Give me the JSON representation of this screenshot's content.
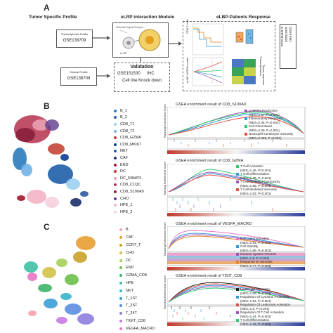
{
  "panels": {
    "a": {
      "letter": "A",
      "headers": [
        "Tumor Specific Profile",
        "eLRP interaction Module",
        "eLBP-Patients Response"
      ],
      "profile_boxes": [
        {
          "title": "Transcriptomic Profile",
          "gse": "GSE138709"
        },
        {
          "title": "Clinical Profile",
          "gse": "GSE138709"
        }
      ],
      "module_caption": "eLBP",
      "validation": {
        "title": "Validation",
        "gse": "GSE151530",
        "ihc": "IHC",
        "knockdown": "Cell line Knock down"
      },
      "response_labels": {
        "left_top": "CD8 T cells",
        "left_bottom": "eLBP LASSO model",
        "right_top": "Transcriptomics",
        "right_bottom": "Tissue response"
      },
      "gse_vertical": [
        "GSE91061",
        "GSE78220",
        "E-MTAB-6134"
      ],
      "colors": {
        "arrow": "#555555",
        "heat_blue": "#4a78c5",
        "heat_green": "#3aa35a",
        "heat_yellow": "#c8d24a"
      }
    },
    "b": {
      "letter": "B",
      "legend": [
        {
          "label": "B_1",
          "color": "#2b7bba"
        },
        {
          "label": "B_2",
          "color": "#1f5fa8"
        },
        {
          "label": "CD8_T1",
          "color": "#9ad0ef"
        },
        {
          "label": "CD8_T2",
          "color": "#71b3e6"
        },
        {
          "label": "CD8_GZMA",
          "color": "#c0392b"
        },
        {
          "label": "CD8_MKI67",
          "color": "#0b3d91"
        },
        {
          "label": "NKT",
          "color": "#2e5aa0"
        },
        {
          "label": "CAF",
          "color": "#1a2f6b"
        },
        {
          "label": "END",
          "color": "#a3182b"
        },
        {
          "label": "DC",
          "color": "#d62828"
        },
        {
          "label": "DC_RAMP3",
          "color": "#e8a0b0"
        },
        {
          "label": "CD8_C1QC",
          "color": "#b5314e"
        },
        {
          "label": "CD8_S100A9",
          "color": "#8a1f3c"
        },
        {
          "label": "CHO",
          "color": "#5e3c8f"
        },
        {
          "label": "HPE_1",
          "color": "#f2b6c6"
        },
        {
          "label": "HPE_2",
          "color": "#f6d3dc"
        }
      ],
      "gsea": [
        {
          "title": "GSEA enrichment result of  CD8_S100A9",
          "ylabel": "Running Enrichment Score",
          "legend": [
            {
              "term": "Cytokine Production",
              "stat": "(NES=1.57, P=0.001)",
              "color": "#9b59b6"
            },
            {
              "term": "Inflammatory Response",
              "stat": "(NES=2.35, P=0.002)",
              "color": "#3498db"
            },
            {
              "term": "Cell Chemotaxis",
              "stat": "(NES=2.09, P=0.001)",
              "color": "#2ecc71"
            },
            {
              "term": "Neutrophil Leukocyte Immunity",
              "stat": "(NES=2.499, P=0.001)",
              "color": "#e74c3c"
            }
          ]
        },
        {
          "title": "GSEA enrichment result of  CD8_GZMA",
          "ylabel": "Running Enrichment Score",
          "legend": [
            {
              "term": "T Cell Activation",
              "stat": "(NES=1.45, P<0.001)",
              "color": "#2ecc71"
            },
            {
              "term": "T Cell Differentiation",
              "stat": "(NES=1.29, P=0.001)",
              "color": "#3498db"
            },
            {
              "term": "T Cell Mediated Cytotoxicity",
              "stat": "(NES=1.55, P<0.001)",
              "color": "#9b59b6"
            },
            {
              "term": "T Cell Mediated Immunity",
              "stat": "(NES=1.53, P<0.001)",
              "color": "#e74c3c"
            }
          ]
        }
      ]
    },
    "c": {
      "letter": "C",
      "legend": [
        {
          "label": "B",
          "color": "#f4a5b0"
        },
        {
          "label": "CAF",
          "color": "#e8a33b"
        },
        {
          "label": "CCR7_T",
          "color": "#c9a227"
        },
        {
          "label": "CHO",
          "color": "#d4c24a"
        },
        {
          "label": "DC",
          "color": "#a6cf5a"
        },
        {
          "label": "END",
          "color": "#6cc04a"
        },
        {
          "label": "GZMA_CD8",
          "color": "#3fb36b"
        },
        {
          "label": "HPE",
          "color": "#3ec1a4"
        },
        {
          "label": "NKT",
          "color": "#36b5c9"
        },
        {
          "label": "T_1ST",
          "color": "#3aa0d9"
        },
        {
          "label": "T_2ST",
          "color": "#5b8ee0"
        },
        {
          "label": "T_24T",
          "color": "#8c7ee0"
        },
        {
          "label": "TIGIT_CD8",
          "color": "#c77be0"
        },
        {
          "label": "VEGFA_MACRO",
          "color": "#e873c4"
        }
      ],
      "gsea": [
        {
          "title": "GSEA enrichment result of  VEGFA_MACRO",
          "ylabel": "Running Enrichment Score",
          "legend": [
            {
              "term": "Cell Communication",
              "stat": "(NES=1.91, P=0.001)",
              "color": "#e873c4"
            },
            {
              "term": "Cell Stability",
              "stat": "(NES=1.85, P=0.001)",
              "color": "#3498db"
            },
            {
              "term": "Immune System Process",
              "stat": "(NES=1.8, P=0.001)",
              "color": "#9b59b6"
            },
            {
              "term": "Response To Stimulus",
              "stat": "(NES=1.77, P=0.003)",
              "color": "#e67e22"
            }
          ]
        },
        {
          "title": "GSEA enrichment result of  TIGIT_CD8",
          "ylabel": "Running Enrichment Score",
          "legend": [
            {
              "term": "Leukocyte Activation",
              "stat": "(NES=1.56, P=0.001)",
              "color": "#222222"
            },
            {
              "term": "Regulation Of Cytokine Production",
              "stat": "(NES=1.53, P=0.001)",
              "color": "#3498db"
            },
            {
              "term": "Regulation Of Leukocyte Activation",
              "stat": "(NES=1.5, P=0.001)",
              "color": "#e74c3c"
            },
            {
              "term": "Regulation Of T Cell Activation",
              "stat": "(NES=1.44, P=0.002)",
              "color": "#9b59b6"
            },
            {
              "term": "T Cell Differentiation",
              "stat": "(NES=1.43, P=0.002)",
              "color": "#2ecc71"
            }
          ]
        }
      ]
    }
  }
}
